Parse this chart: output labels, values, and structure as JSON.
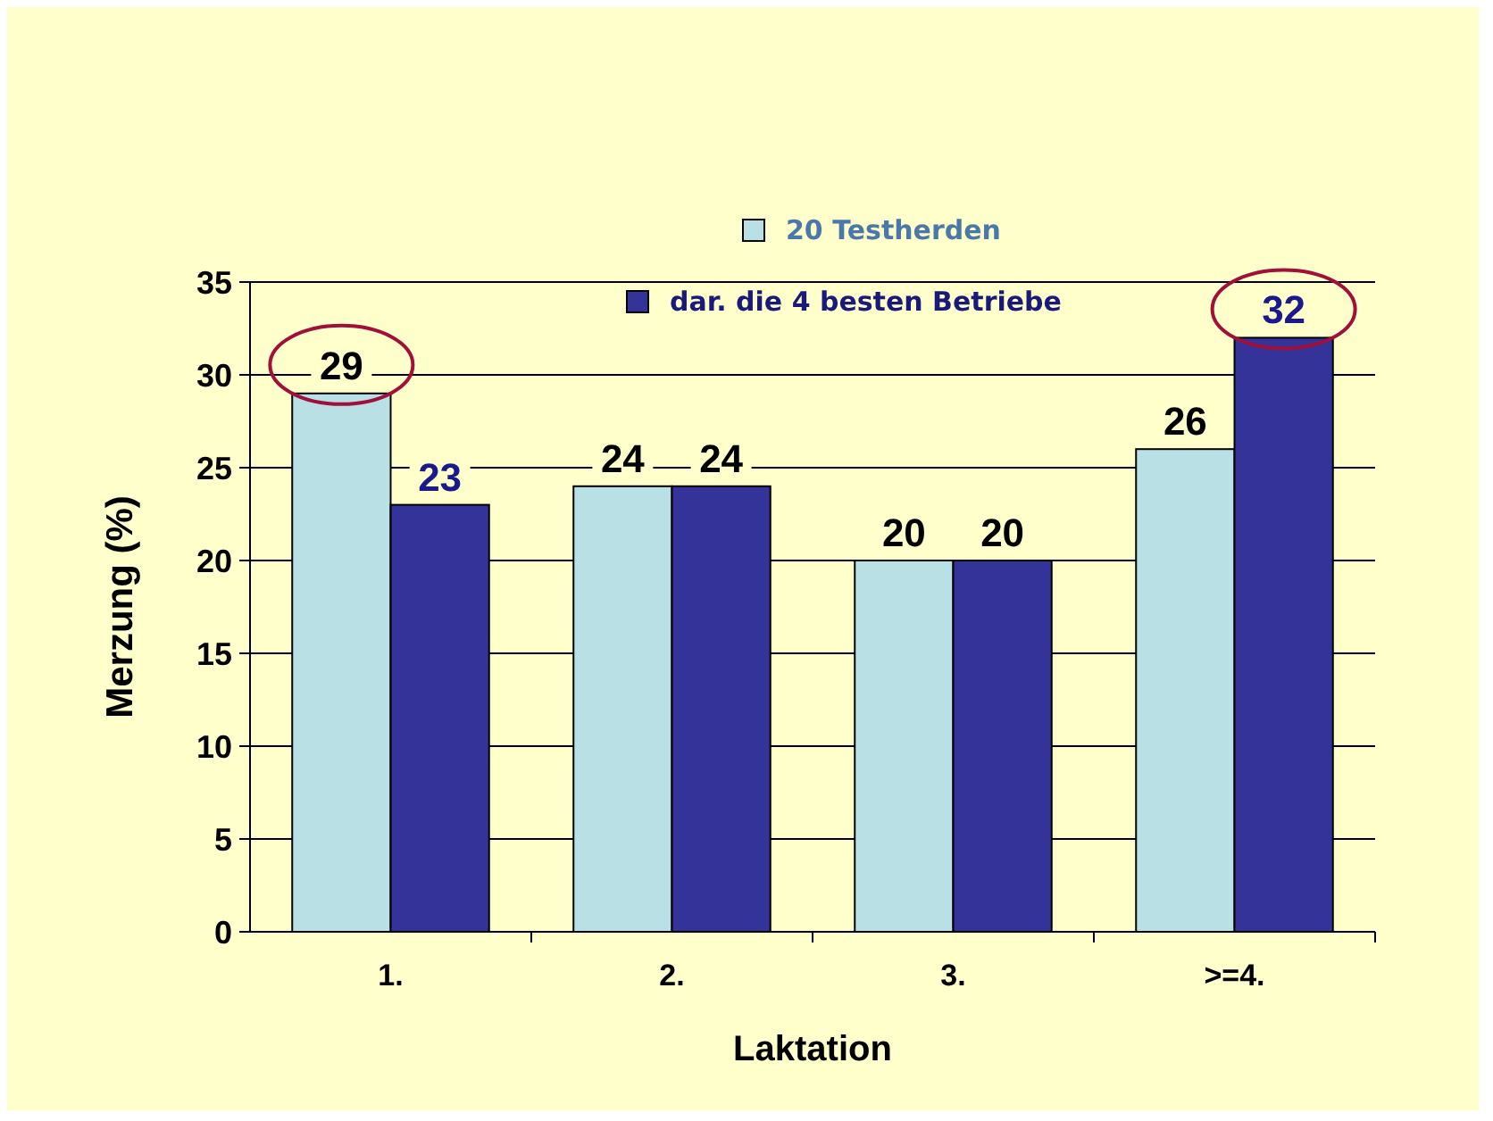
{
  "chart_data": {
    "type": "bar",
    "xlabel": "Laktation",
    "ylabel": "Merzung (%)",
    "categories": [
      "1.",
      "2.",
      "3.",
      ">=4."
    ],
    "series": [
      {
        "name": "20 Testherden",
        "color": "#b9e0e4",
        "values": [
          29,
          24,
          20,
          26
        ]
      },
      {
        "name": "dar. die 4 besten Betriebe",
        "color": "#333399",
        "values": [
          23,
          24,
          20,
          32
        ]
      }
    ],
    "ylim": [
      0,
      35
    ],
    "yticks": [
      0,
      5,
      10,
      15,
      20,
      25,
      30,
      35
    ],
    "grid": "y",
    "legend": "top",
    "data_labels": true
  }
}
